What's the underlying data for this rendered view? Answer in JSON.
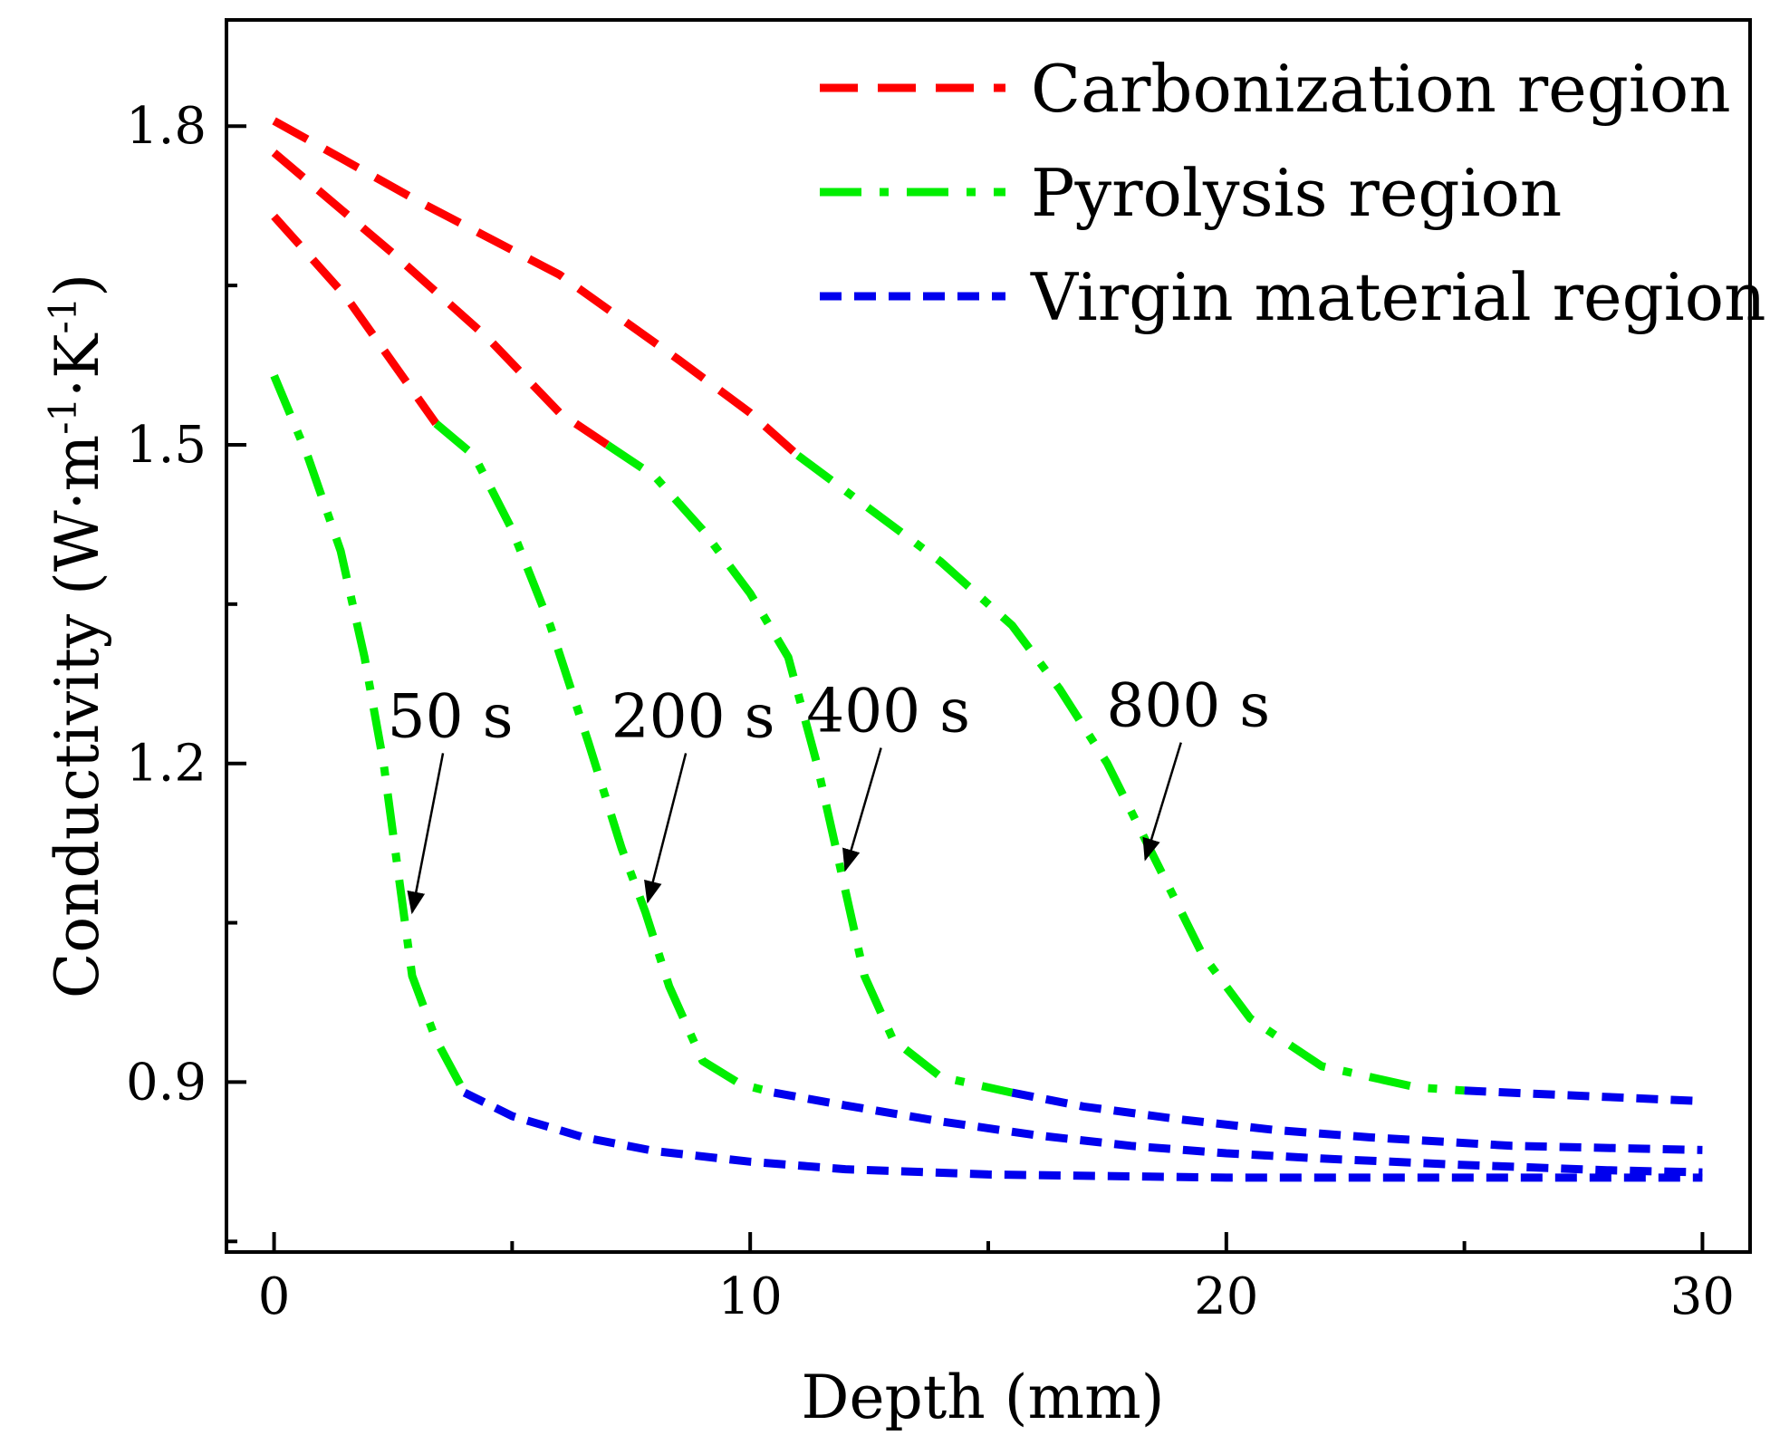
{
  "chart_data": {
    "type": "line",
    "xlabel": "Depth (mm)",
    "ylabel": {
      "base": "Conductivity (W·m",
      "sup1": "-1",
      "mid": "·K",
      "sup2": "-1",
      "end": ")"
    },
    "xlim": [
      -1,
      31
    ],
    "ylim": [
      0.74,
      1.9
    ],
    "x_ticks": [
      0,
      10,
      20,
      30
    ],
    "x_tick_labels": [
      "0",
      "10",
      "20",
      "30"
    ],
    "x_minor_ticks": [
      5,
      15,
      25
    ],
    "y_ticks": [
      0.9,
      1.2,
      1.5,
      1.8
    ],
    "y_tick_labels": [
      "0.9",
      "1.2",
      "1.5",
      "1.8"
    ],
    "y_minor_ticks": [
      0.75,
      1.05,
      1.35,
      1.65
    ],
    "grid": false,
    "legend_position": "top-right",
    "legend": [
      {
        "label": "Carbonization region",
        "color": "#ff0000",
        "style": "dash"
      },
      {
        "label": "Pyrolysis region",
        "color": "#00ee00",
        "style": "dashdot"
      },
      {
        "label": "Virgin material region",
        "color": "#0000ee",
        "style": "short-dash"
      }
    ],
    "series": [
      {
        "time": "50 s",
        "carbonization": [
          [
            0,
            1.715
          ],
          [
            1.5,
            1.64
          ],
          [
            3.4,
            1.52
          ]
        ],
        "pyrolysis": [
          [
            0,
            1.565
          ],
          [
            0.7,
            1.49
          ],
          [
            1.4,
            1.4
          ],
          [
            1.9,
            1.3
          ],
          [
            2.3,
            1.2
          ],
          [
            2.6,
            1.1
          ],
          [
            2.9,
            1.0
          ],
          [
            3.4,
            0.94
          ],
          [
            4.0,
            0.89
          ]
        ],
        "virgin": [
          [
            4.0,
            0.89
          ],
          [
            5.0,
            0.868
          ],
          [
            6.5,
            0.848
          ],
          [
            8.0,
            0.835
          ],
          [
            10.0,
            0.825
          ],
          [
            12.0,
            0.818
          ],
          [
            15.0,
            0.813
          ],
          [
            20.0,
            0.81
          ],
          [
            25.0,
            0.81
          ],
          [
            30.0,
            0.81
          ]
        ]
      },
      {
        "time": "200 s",
        "carbonization": [
          [
            0,
            1.775
          ],
          [
            2.5,
            1.68
          ],
          [
            4.5,
            1.6
          ],
          [
            6.0,
            1.53
          ],
          [
            7.0,
            1.5
          ]
        ],
        "pyrolysis": [
          [
            7.0,
            1.5
          ],
          [
            8.0,
            1.47
          ],
          [
            9.0,
            1.42
          ],
          [
            10.0,
            1.36
          ],
          [
            10.8,
            1.3
          ],
          [
            11.4,
            1.2
          ],
          [
            11.9,
            1.1
          ],
          [
            12.4,
            1.0
          ],
          [
            13.0,
            0.94
          ],
          [
            14.0,
            0.905
          ],
          [
            15.5,
            0.89
          ]
        ],
        "virgin": [
          [
            15.5,
            0.89
          ],
          [
            17.0,
            0.877
          ],
          [
            19.0,
            0.865
          ],
          [
            21.0,
            0.855
          ],
          [
            23.0,
            0.848
          ],
          [
            26.0,
            0.84
          ],
          [
            30.0,
            0.836
          ]
        ]
      },
      {
        "time": "400 s",
        "carbonization": [
          [
            0,
            1.805
          ],
          [
            3.0,
            1.73
          ],
          [
            6.0,
            1.66
          ],
          [
            8.5,
            1.58
          ],
          [
            10.0,
            1.53
          ],
          [
            11.0,
            1.49
          ]
        ],
        "pyrolysis": [
          [
            11.0,
            1.49
          ],
          [
            12.5,
            1.44
          ],
          [
            14.0,
            1.39
          ],
          [
            15.5,
            1.33
          ],
          [
            16.5,
            1.27
          ],
          [
            17.5,
            1.2
          ],
          [
            18.5,
            1.11
          ],
          [
            19.5,
            1.02
          ],
          [
            20.5,
            0.96
          ],
          [
            22.0,
            0.915
          ],
          [
            24.0,
            0.895
          ],
          [
            25.0,
            0.892
          ]
        ],
        "virgin": [
          [
            25.0,
            0.892
          ],
          [
            27.0,
            0.888
          ],
          [
            30.0,
            0.882
          ]
        ]
      },
      {
        "time": "800 s",
        "carbonization": [],
        "pyrolysis": [
          [
            3.4,
            1.52
          ],
          [
            4.2,
            1.49
          ],
          [
            5.0,
            1.42
          ],
          [
            5.8,
            1.33
          ],
          [
            6.6,
            1.22
          ],
          [
            7.3,
            1.12
          ],
          [
            7.8,
            1.06
          ],
          [
            8.3,
            0.99
          ],
          [
            9.0,
            0.92
          ],
          [
            9.8,
            0.898
          ],
          [
            10.5,
            0.89
          ]
        ],
        "virgin": [
          [
            10.5,
            0.89
          ],
          [
            12.0,
            0.878
          ],
          [
            14.0,
            0.863
          ],
          [
            16.0,
            0.85
          ],
          [
            18.0,
            0.84
          ],
          [
            20.0,
            0.833
          ],
          [
            22.0,
            0.828
          ],
          [
            25.0,
            0.822
          ],
          [
            28.0,
            0.817
          ],
          [
            30.0,
            0.815
          ]
        ]
      }
    ],
    "annotations": [
      {
        "text": "50 s",
        "label_x": 3.7,
        "label_y": 1.225,
        "arrow_to": [
          2.9,
          1.06
        ]
      },
      {
        "text": "200 s",
        "label_x": 8.8,
        "label_y": 1.225,
        "arrow_to": [
          7.85,
          1.07
        ]
      },
      {
        "text": "400 s",
        "label_x": 12.9,
        "label_y": 1.23,
        "arrow_to": [
          12.0,
          1.1
        ]
      },
      {
        "text": "800 s",
        "label_x": 19.2,
        "label_y": 1.235,
        "arrow_to": [
          18.3,
          1.11
        ]
      }
    ]
  }
}
